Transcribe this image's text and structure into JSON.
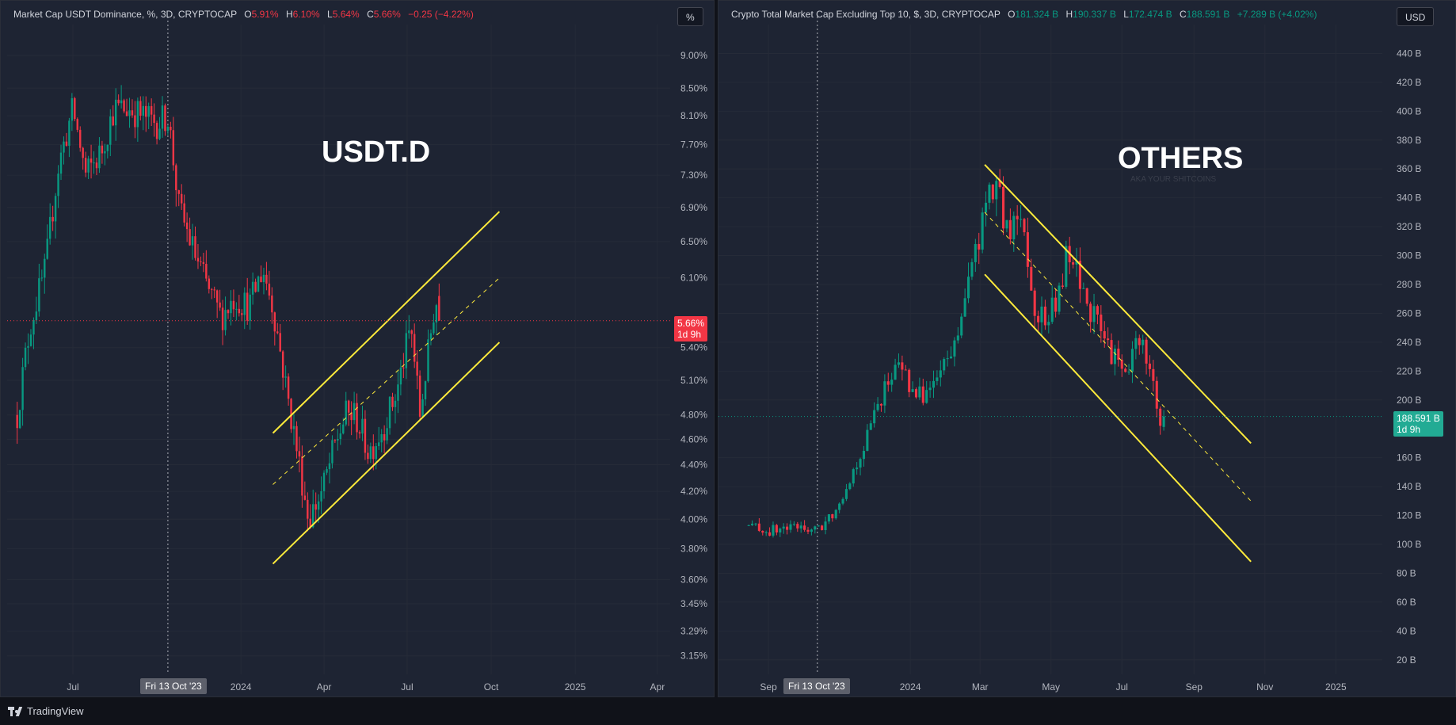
{
  "left": {
    "legend": {
      "title": "Market Cap USDT Dominance, %, 3D, CRYPTOCAP",
      "o_label": "O",
      "o_value": "5.91%",
      "h_label": "H",
      "h_value": "6.10%",
      "l_label": "L",
      "l_value": "5.64%",
      "c_label": "C",
      "c_value": "5.66%",
      "change": "−0.25 (−4.22%)"
    },
    "unit_button": "%",
    "watermark": "USDT.D",
    "price_tag": "5.66%",
    "price_tag_sub": "1d 9h",
    "crosshair_date": "Fri 13 Oct '23",
    "colors": {
      "up": "#089981",
      "down": "#f23645",
      "channel": "#ffeb3b"
    }
  },
  "right": {
    "legend": {
      "title": "Crypto Total Market Cap Excluding Top 10, $, 3D, CRYPTOCAP",
      "o_label": "O",
      "o_value": "181.324 B",
      "h_label": "H",
      "h_value": "190.337 B",
      "l_label": "L",
      "l_value": "172.474 B",
      "c_label": "C",
      "c_value": "188.591 B",
      "change": "+7.289 B (+4.02%)"
    },
    "unit_button": "USD",
    "watermark": "OTHERS",
    "watermark_sub": "AKA YOUR SHITCOINS",
    "price_tag": "188.591 B",
    "price_tag_sub": "1d 9h",
    "crosshair_date": "Fri 13 Oct '23",
    "colors": {
      "up": "#089981",
      "down": "#f23645",
      "channel": "#ffeb3b"
    }
  },
  "branding": "TradingView",
  "chart_data": [
    {
      "type": "candlestick",
      "title": "Market Cap USDT Dominance, %, 3D, CRYPTOCAP",
      "ylabel": "%",
      "y_ticks": [
        "9.00%",
        "8.50%",
        "8.10%",
        "7.70%",
        "7.30%",
        "6.90%",
        "6.50%",
        "6.10%",
        "5.40%",
        "5.10%",
        "4.80%",
        "4.60%",
        "4.40%",
        "4.20%",
        "4.00%",
        "3.80%",
        "3.60%",
        "3.45%",
        "3.29%",
        "3.15%"
      ],
      "x_ticks": [
        "Jul",
        "2024",
        "Apr",
        "Jul",
        "Oct",
        "2025",
        "Apr"
      ],
      "ylim": [
        3.05,
        9.5
      ],
      "scale": "log",
      "close_path": [
        [
          "2023-05-01",
          4.8
        ],
        [
          "2023-05-15",
          5.6
        ],
        [
          "2023-06-01",
          6.2
        ],
        [
          "2023-06-15",
          7.4
        ],
        [
          "2023-07-01",
          8.2
        ],
        [
          "2023-07-15",
          7.3
        ],
        [
          "2023-08-01",
          7.6
        ],
        [
          "2023-08-15",
          8.2
        ],
        [
          "2023-09-01",
          8.2
        ],
        [
          "2023-09-15",
          8.1
        ],
        [
          "2023-10-01",
          8.0
        ],
        [
          "2023-10-13",
          8.1
        ],
        [
          "2023-10-25",
          6.9
        ],
        [
          "2023-11-10",
          6.4
        ],
        [
          "2023-11-25",
          6.0
        ],
        [
          "2023-12-10",
          5.7
        ],
        [
          "2023-12-25",
          5.9
        ],
        [
          "2024-01-10",
          5.8
        ],
        [
          "2024-01-25",
          6.2
        ],
        [
          "2024-02-05",
          5.8
        ],
        [
          "2024-02-20",
          5.0
        ],
        [
          "2024-03-05",
          4.4
        ],
        [
          "2024-03-15",
          4.0
        ],
        [
          "2024-03-30",
          4.2
        ],
        [
          "2024-04-15",
          4.6
        ],
        [
          "2024-04-25",
          4.8
        ],
        [
          "2024-05-05",
          4.8
        ],
        [
          "2024-05-20",
          4.5
        ],
        [
          "2024-06-05",
          4.7
        ],
        [
          "2024-06-20",
          5.0
        ],
        [
          "2024-07-05",
          5.6
        ],
        [
          "2024-07-15",
          4.8
        ],
        [
          "2024-07-25",
          5.4
        ],
        [
          "2024-08-01",
          5.9
        ],
        [
          "2024-08-05",
          5.66
        ]
      ],
      "channel": {
        "upper": [
          [
            "2024-02-05",
            4.65
          ],
          [
            "2024-10-10",
            6.85
          ]
        ],
        "mid": [
          [
            "2024-02-05",
            4.25
          ],
          [
            "2024-10-10",
            6.1
          ]
        ],
        "lower": [
          [
            "2024-02-05",
            3.7
          ],
          [
            "2024-10-10",
            5.45
          ]
        ]
      },
      "last": {
        "open": 5.91,
        "high": 6.1,
        "low": 5.64,
        "close": 5.66
      }
    },
    {
      "type": "candlestick",
      "title": "Crypto Total Market Cap Excluding Top 10, $, 3D, CRYPTOCAP",
      "ylabel": "USD",
      "y_ticks": [
        "440 B",
        "420 B",
        "400 B",
        "380 B",
        "360 B",
        "340 B",
        "320 B",
        "300 B",
        "280 B",
        "260 B",
        "240 B",
        "220 B",
        "200 B",
        "160 B",
        "140 B",
        "120 B",
        "100 B",
        "80 B",
        "60 B",
        "40 B",
        "20 B"
      ],
      "x_ticks": [
        "Sep",
        "2024",
        "Mar",
        "May",
        "Jul",
        "Sep",
        "Nov",
        "2025"
      ],
      "ylim": [
        10,
        460
      ],
      "scale": "linear",
      "close_path": [
        [
          "2023-08-15",
          113
        ],
        [
          "2023-09-01",
          109
        ],
        [
          "2023-09-15",
          111
        ],
        [
          "2023-10-01",
          112
        ],
        [
          "2023-10-13",
          109
        ],
        [
          "2023-10-25",
          120
        ],
        [
          "2023-11-10",
          145
        ],
        [
          "2023-11-25",
          175
        ],
        [
          "2023-12-10",
          210
        ],
        [
          "2023-12-25",
          225
        ],
        [
          "2024-01-05",
          200
        ],
        [
          "2024-01-20",
          210
        ],
        [
          "2024-02-05",
          230
        ],
        [
          "2024-02-20",
          280
        ],
        [
          "2024-03-05",
          330
        ],
        [
          "2024-03-15",
          350
        ],
        [
          "2024-03-25",
          310
        ],
        [
          "2024-04-05",
          335
        ],
        [
          "2024-04-15",
          270
        ],
        [
          "2024-04-25",
          255
        ],
        [
          "2024-05-05",
          265
        ],
        [
          "2024-05-15",
          300
        ],
        [
          "2024-05-25",
          285
        ],
        [
          "2024-06-05",
          260
        ],
        [
          "2024-06-20",
          235
        ],
        [
          "2024-07-05",
          215
        ],
        [
          "2024-07-15",
          245
        ],
        [
          "2024-07-25",
          225
        ],
        [
          "2024-08-05",
          170
        ],
        [
          "2024-08-08",
          188.6
        ]
      ],
      "channel": {
        "upper": [
          [
            "2024-03-05",
            363
          ],
          [
            "2024-10-20",
            170
          ]
        ],
        "mid": [
          [
            "2024-03-05",
            330
          ],
          [
            "2024-10-20",
            130
          ]
        ],
        "lower": [
          [
            "2024-03-05",
            287
          ],
          [
            "2024-10-20",
            88
          ]
        ]
      },
      "last": {
        "open": 181.324,
        "high": 190.337,
        "low": 172.474,
        "close": 188.591
      }
    }
  ]
}
